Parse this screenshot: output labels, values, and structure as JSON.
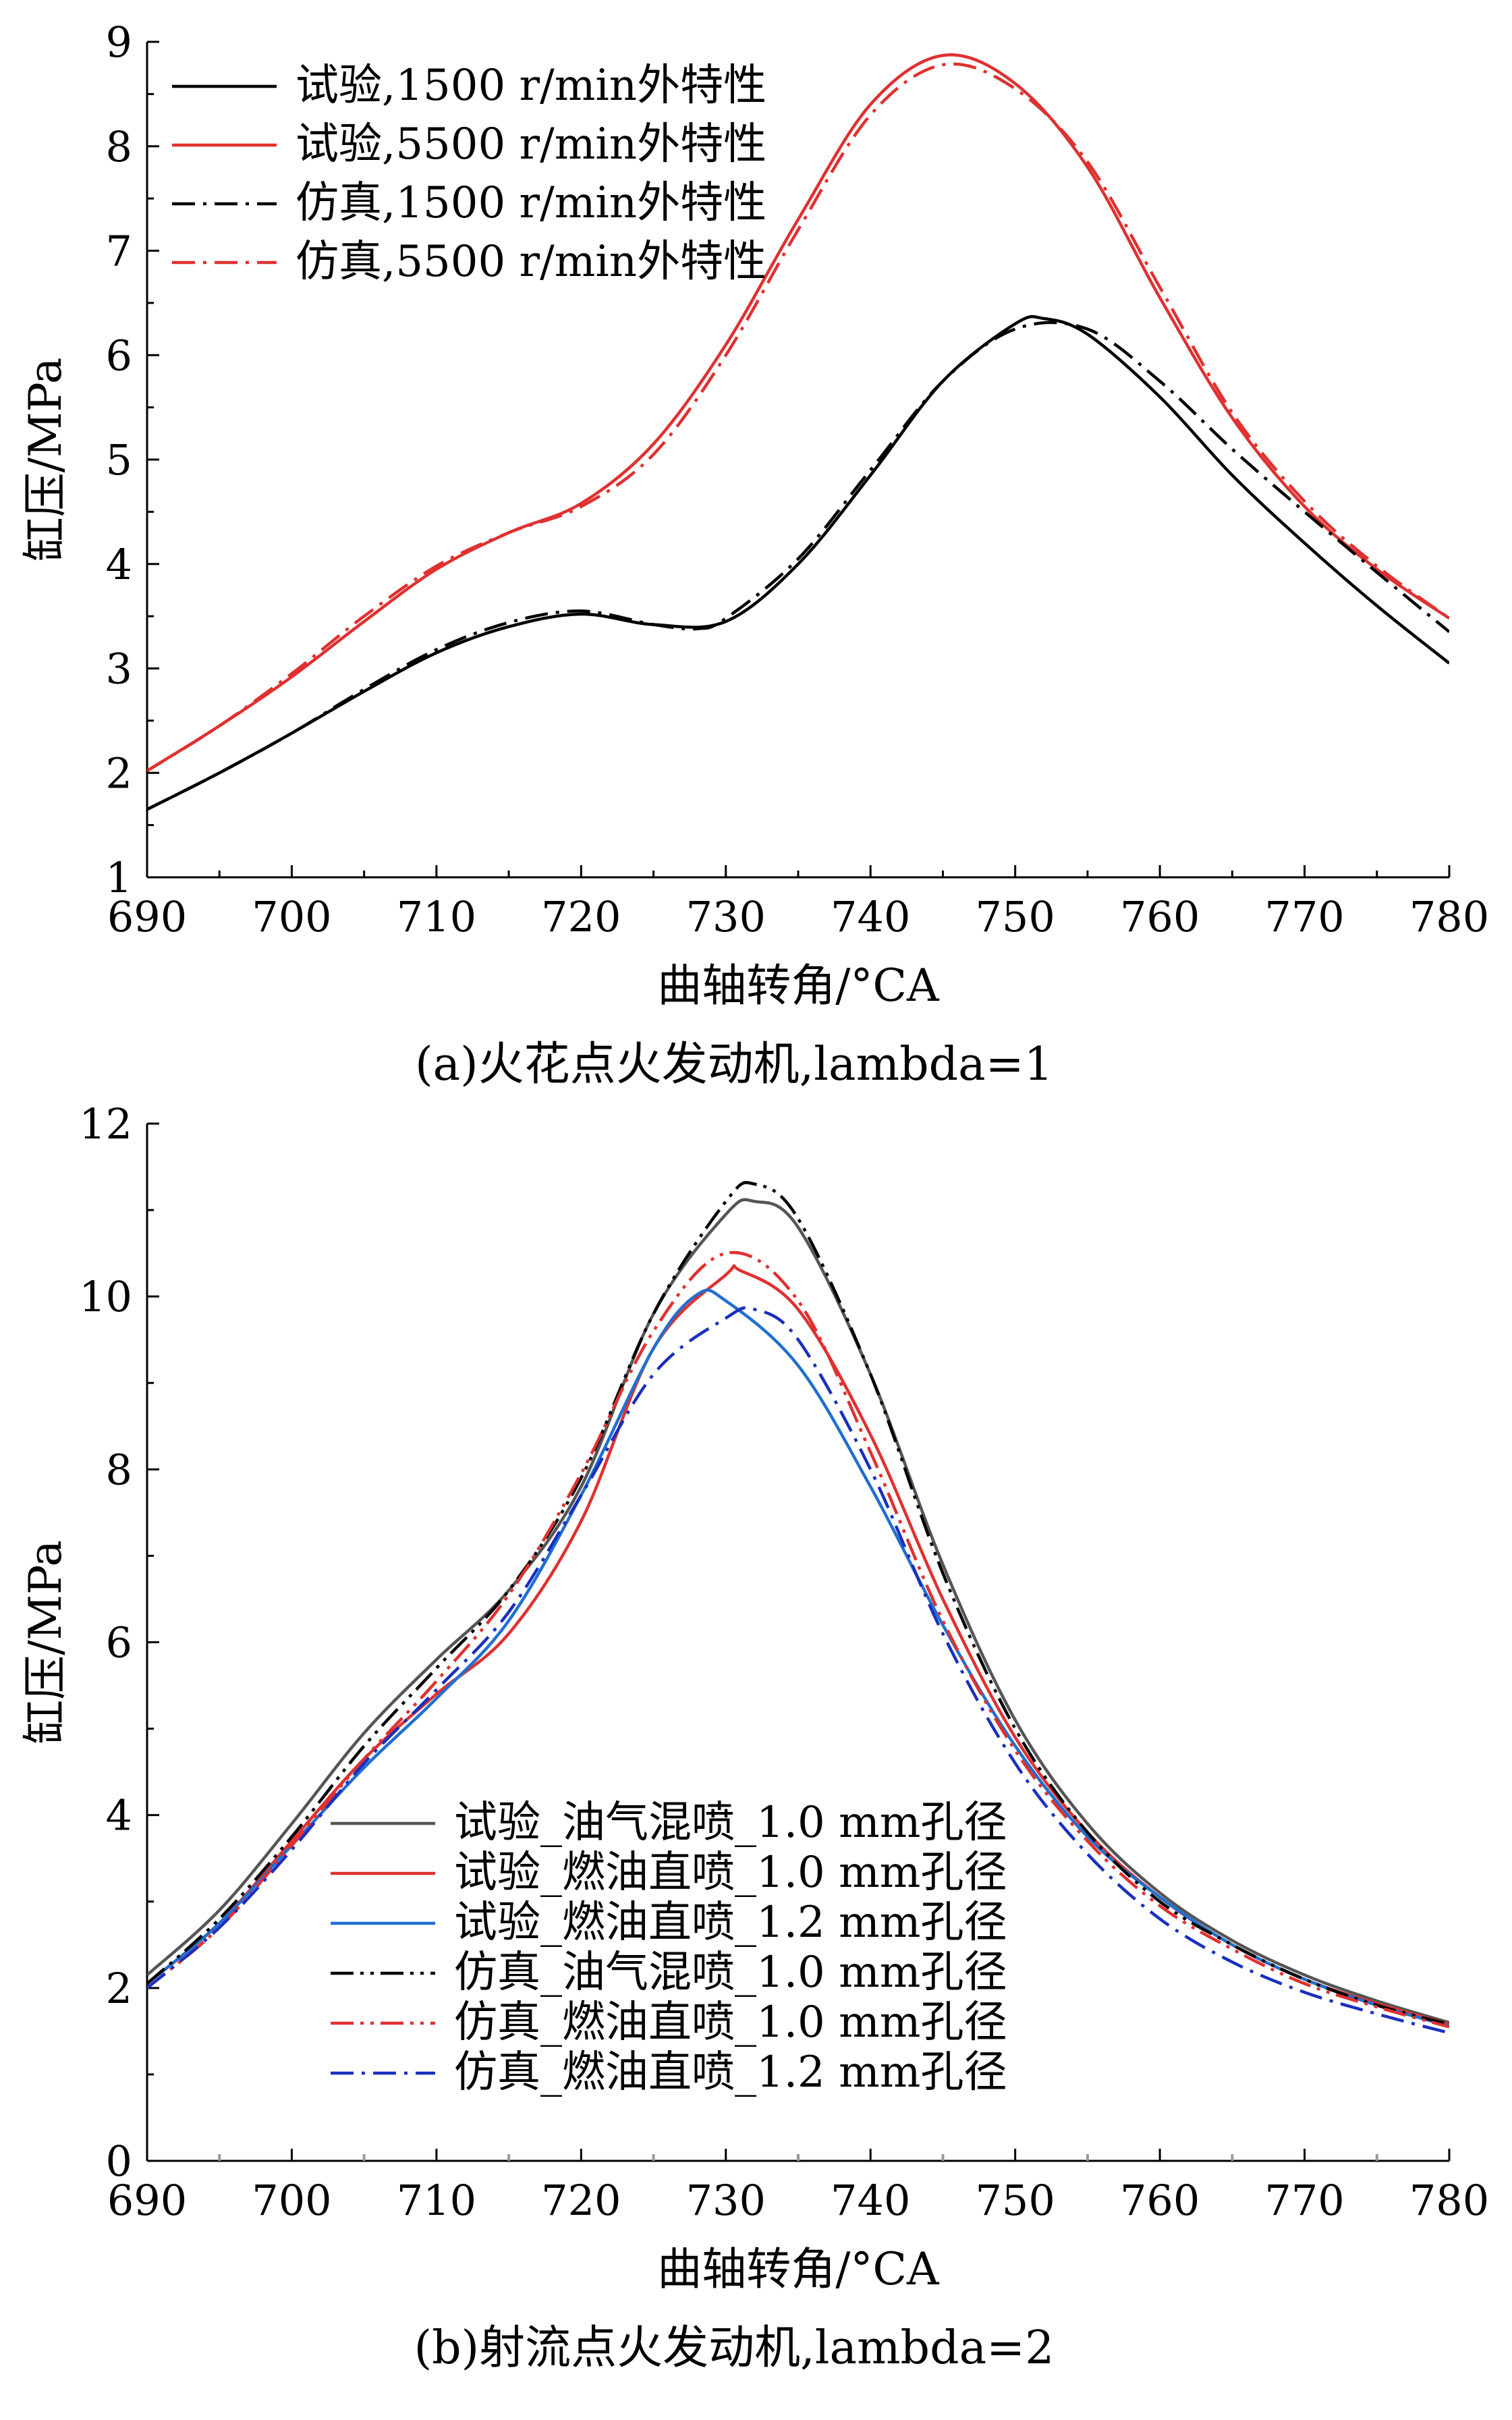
{
  "chart_data": [
    {
      "type": "line",
      "caption": "(a)火花点火发动机,lambda=1",
      "xlabel": "曲轴转角/°CA",
      "ylabel": "缸压/MPa",
      "xlim": [
        690,
        780
      ],
      "ylim": [
        1,
        9
      ],
      "xticks": [
        "690",
        "700",
        "710",
        "720",
        "730",
        "740",
        "750",
        "760",
        "770",
        "780"
      ],
      "yticks": [
        "1",
        "2",
        "3",
        "4",
        "5",
        "6",
        "7",
        "8",
        "9"
      ],
      "legend_position": "top-left",
      "grid": false,
      "series": [
        {
          "name": "试验,1500 r/min外特性",
          "color": "#000000",
          "dash": "solid",
          "x": [
            690,
            695,
            700,
            705,
            710,
            715,
            720,
            725,
            730,
            735,
            740,
            745,
            750,
            752,
            755,
            760,
            765,
            770,
            775,
            780
          ],
          "y": [
            1.65,
            2.0,
            2.38,
            2.78,
            3.15,
            3.4,
            3.52,
            3.42,
            3.45,
            4.0,
            4.85,
            5.75,
            6.3,
            6.35,
            6.2,
            5.6,
            4.85,
            4.2,
            3.6,
            3.05
          ]
        },
        {
          "name": "试验,5500 r/min外特性",
          "color": "#e03030",
          "dash": "solid",
          "x": [
            690,
            695,
            700,
            705,
            710,
            715,
            720,
            725,
            730,
            735,
            740,
            745,
            750,
            755,
            760,
            765,
            770,
            775,
            780
          ],
          "y": [
            2.02,
            2.45,
            2.92,
            3.45,
            3.95,
            4.3,
            4.58,
            5.15,
            6.1,
            7.3,
            8.4,
            8.87,
            8.6,
            7.8,
            6.55,
            5.4,
            4.55,
            3.95,
            3.48
          ]
        },
        {
          "name": "仿真,1500 r/min外特性",
          "color": "#000000",
          "dash": "dashdot",
          "x": [
            690,
            695,
            700,
            705,
            710,
            715,
            720,
            725,
            728,
            730,
            735,
            740,
            745,
            750,
            755,
            760,
            765,
            770,
            775,
            780
          ],
          "y": [
            1.65,
            2.0,
            2.38,
            2.8,
            3.18,
            3.44,
            3.55,
            3.42,
            3.38,
            3.48,
            4.05,
            4.9,
            5.75,
            6.25,
            6.25,
            5.75,
            5.1,
            4.5,
            3.92,
            3.35
          ]
        },
        {
          "name": "仿真,5500 r/min外特性",
          "color": "#e03030",
          "dash": "dashdot",
          "x": [
            690,
            695,
            700,
            705,
            710,
            715,
            720,
            725,
            730,
            735,
            740,
            745,
            750,
            755,
            760,
            765,
            770,
            775,
            780
          ],
          "y": [
            2.02,
            2.45,
            2.95,
            3.5,
            3.98,
            4.3,
            4.55,
            5.05,
            6.0,
            7.2,
            8.3,
            8.78,
            8.55,
            7.85,
            6.65,
            5.45,
            4.6,
            3.98,
            3.48
          ]
        }
      ]
    },
    {
      "type": "line",
      "caption": "(b)射流点火发动机,lambda=2",
      "xlabel": "曲轴转角/°CA",
      "ylabel": "缸压/MPa",
      "xlim": [
        690,
        780
      ],
      "ylim": [
        0,
        12
      ],
      "xticks": [
        "690",
        "700",
        "710",
        "720",
        "730",
        "740",
        "750",
        "760",
        "770",
        "780"
      ],
      "yticks": [
        "0",
        "2",
        "4",
        "6",
        "8",
        "10",
        "12"
      ],
      "legend_position": "bottom-center",
      "grid": false,
      "series": [
        {
          "name": "试验_油气混喷_1.0 mm孔径",
          "color": "#555555",
          "dash": "solid",
          "x": [
            690,
            695,
            700,
            705,
            710,
            715,
            720,
            725,
            730,
            732,
            735,
            740,
            745,
            750,
            755,
            760,
            765,
            770,
            775,
            780
          ],
          "y": [
            2.15,
            2.9,
            3.9,
            4.95,
            5.8,
            6.6,
            7.8,
            9.8,
            10.95,
            11.1,
            10.8,
            9.1,
            6.9,
            5.1,
            3.9,
            3.1,
            2.55,
            2.15,
            1.85,
            1.6
          ]
        },
        {
          "name": "试验_燃油直喷_1.0 mm孔径",
          "color": "#e03030",
          "dash": "solid",
          "x": [
            690,
            695,
            700,
            705,
            710,
            715,
            720,
            725,
            730,
            731,
            735,
            740,
            745,
            750,
            755,
            760,
            765,
            770,
            775,
            780
          ],
          "y": [
            2.05,
            2.75,
            3.7,
            4.65,
            5.4,
            6.1,
            7.4,
            9.4,
            10.25,
            10.3,
            9.85,
            8.4,
            6.5,
            4.9,
            3.8,
            3.05,
            2.5,
            2.1,
            1.82,
            1.58
          ]
        },
        {
          "name": "试验_燃油直喷_1.2 mm孔径",
          "color": "#1f6fd0",
          "dash": "solid",
          "x": [
            690,
            695,
            700,
            705,
            710,
            715,
            720,
            725,
            728,
            730,
            735,
            740,
            745,
            750,
            755,
            760,
            765,
            770,
            775,
            780
          ],
          "y": [
            2.05,
            2.75,
            3.65,
            4.55,
            5.35,
            6.25,
            7.7,
            9.4,
            10.02,
            9.95,
            9.2,
            7.8,
            6.2,
            4.8,
            3.75,
            3.05,
            2.5,
            2.1,
            1.8,
            1.56
          ]
        },
        {
          "name": "仿真_油气混喷_1.0 mm孔径",
          "color": "#000000",
          "dash": "dashdotdot",
          "x": [
            690,
            695,
            700,
            705,
            710,
            715,
            720,
            725,
            730,
            732,
            735,
            740,
            745,
            750,
            755,
            760,
            765,
            770,
            775,
            780
          ],
          "y": [
            2.05,
            2.8,
            3.75,
            4.8,
            5.7,
            6.6,
            7.9,
            9.8,
            11.1,
            11.3,
            10.9,
            9.1,
            6.8,
            5.0,
            3.8,
            3.0,
            2.5,
            2.1,
            1.8,
            1.58
          ]
        },
        {
          "name": "仿真_燃油直喷_1.0 mm孔径",
          "color": "#e03030",
          "dash": "dashdotdot",
          "x": [
            690,
            695,
            700,
            705,
            710,
            715,
            720,
            725,
            730,
            735,
            740,
            745,
            750,
            755,
            760,
            765,
            770,
            775,
            780
          ],
          "y": [
            2.0,
            2.7,
            3.65,
            4.65,
            5.55,
            6.55,
            7.95,
            9.6,
            10.5,
            9.95,
            8.2,
            6.25,
            4.75,
            3.7,
            2.95,
            2.45,
            2.05,
            1.78,
            1.55
          ]
        },
        {
          "name": "仿真_燃油直喷_1.2 mm孔径",
          "color": "#1a2fc0",
          "dash": "dashdot",
          "x": [
            690,
            695,
            700,
            705,
            710,
            715,
            720,
            725,
            730,
            732,
            735,
            740,
            745,
            750,
            755,
            760,
            765,
            770,
            775,
            780
          ],
          "y": [
            2.0,
            2.7,
            3.6,
            4.6,
            5.45,
            6.35,
            7.7,
            9.1,
            9.75,
            9.85,
            9.5,
            8.0,
            6.1,
            4.6,
            3.55,
            2.8,
            2.3,
            1.95,
            1.7,
            1.48
          ]
        }
      ]
    }
  ]
}
